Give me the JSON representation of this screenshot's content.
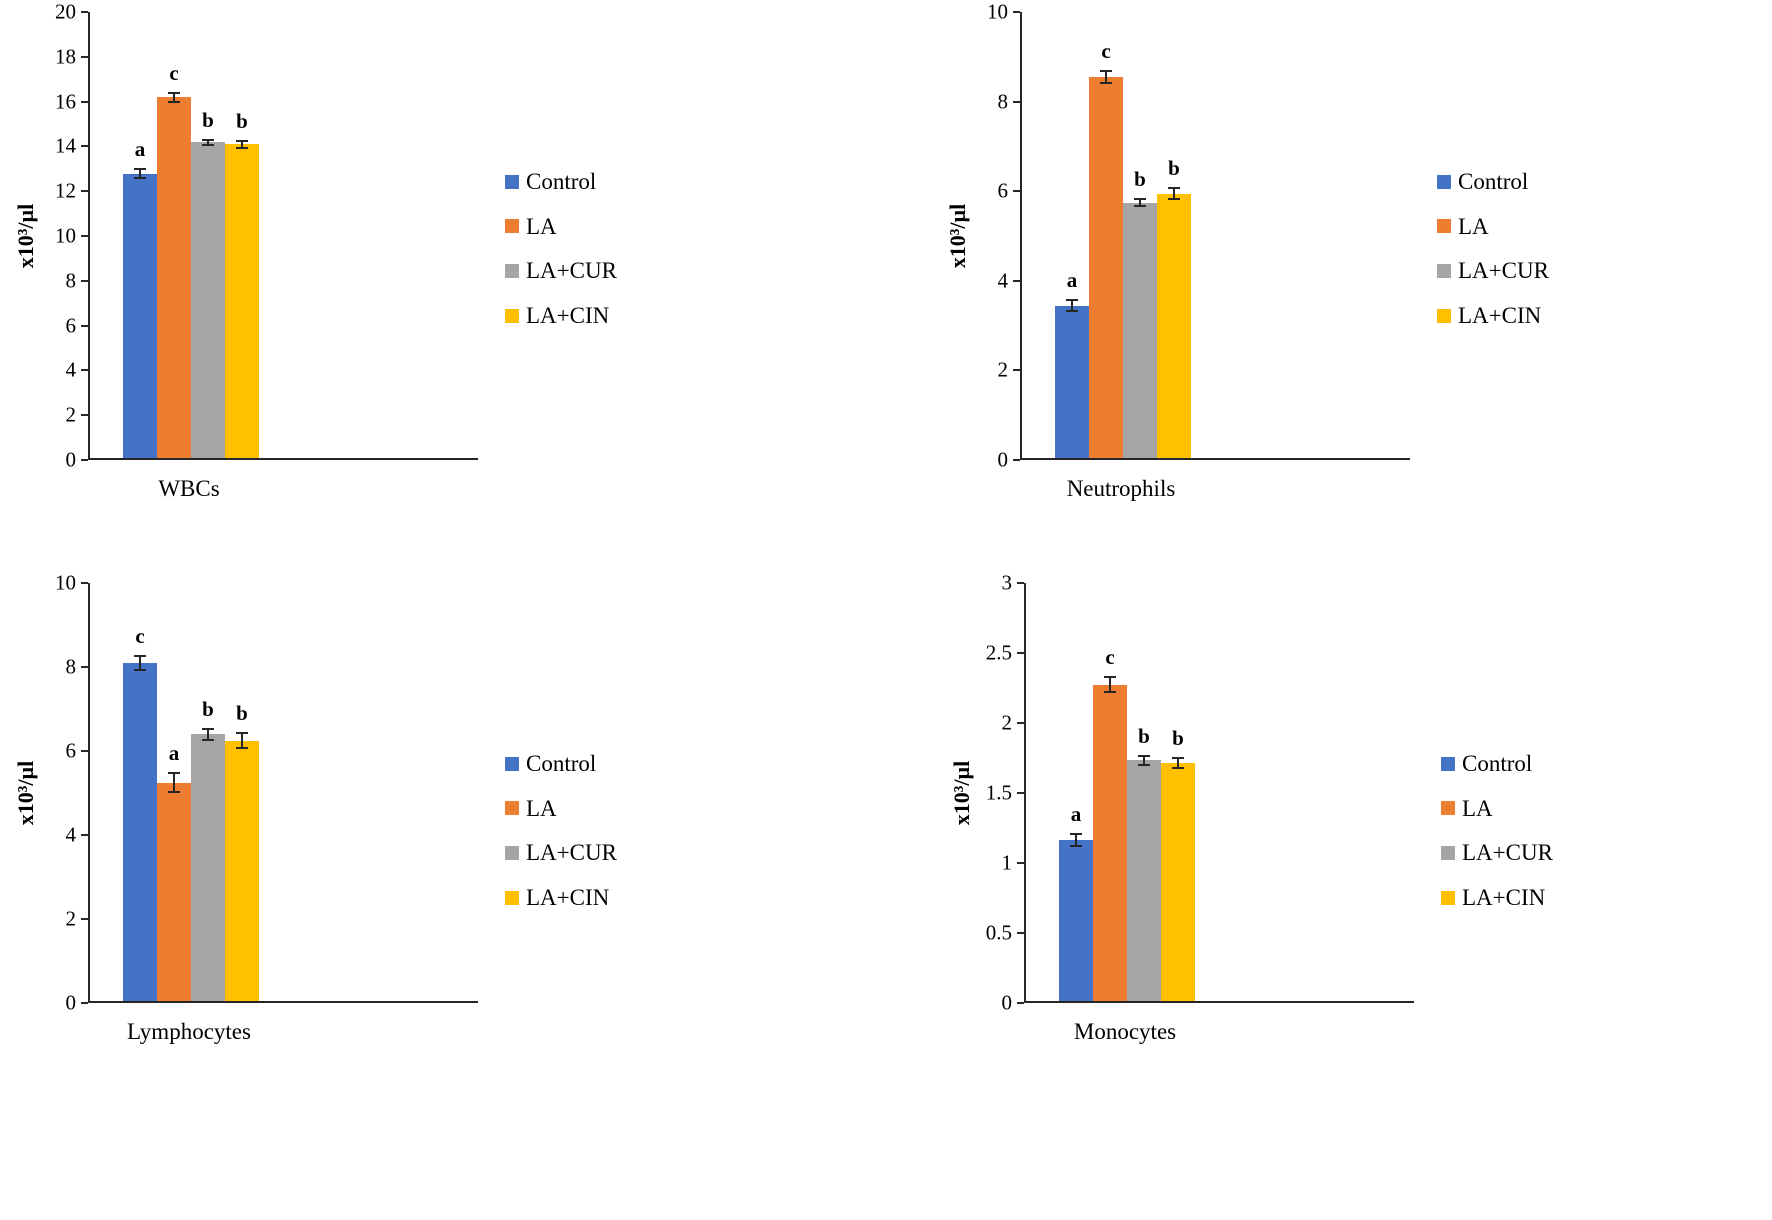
{
  "figure": {
    "description": "Four grouped bar charts of blood cell counts with error bars and significance letters",
    "colors": {
      "control": "#4472C4",
      "la": "#ED7D31",
      "la_cur": "#A5A5A5",
      "la_cin": "#FFC000"
    }
  },
  "chart_data": [
    {
      "type": "bar",
      "xlabel": "WBCs",
      "ylabel": "x10³/µl",
      "ylim": [
        0,
        20
      ],
      "yticks": [
        0,
        2,
        4,
        6,
        8,
        10,
        12,
        14,
        16,
        18,
        20
      ],
      "grid": false,
      "legend_position": "right",
      "categories": [
        "Control",
        "LA",
        "LA+CUR",
        "LA+CIN"
      ],
      "series": [
        {
          "name": "Control",
          "value": 12.7,
          "error": 0.25,
          "sig_letter": "a",
          "color": "#4472C4"
        },
        {
          "name": "LA",
          "value": 16.1,
          "error": 0.25,
          "sig_letter": "c",
          "color": "#ED7D31"
        },
        {
          "name": "LA+CUR",
          "value": 14.1,
          "error": 0.15,
          "sig_letter": "b",
          "color": "#A5A5A5"
        },
        {
          "name": "LA+CIN",
          "value": 14.0,
          "error": 0.2,
          "sig_letter": "b",
          "color": "#FFC000"
        }
      ]
    },
    {
      "type": "bar",
      "xlabel": "Neutrophils",
      "ylabel": "x10³/µl",
      "ylim": [
        0,
        10
      ],
      "yticks": [
        0,
        2,
        4,
        6,
        8,
        10
      ],
      "grid": false,
      "legend_position": "right",
      "categories": [
        "Control",
        "LA",
        "LA+CUR",
        "LA+CIN"
      ],
      "series": [
        {
          "name": "Control",
          "value": 3.4,
          "error": 0.15,
          "sig_letter": "a",
          "color": "#4472C4"
        },
        {
          "name": "LA",
          "value": 8.5,
          "error": 0.15,
          "sig_letter": "c",
          "color": "#ED7D31"
        },
        {
          "name": "LA+CUR",
          "value": 5.7,
          "error": 0.1,
          "sig_letter": "b",
          "color": "#A5A5A5"
        },
        {
          "name": "LA+CIN",
          "value": 5.9,
          "error": 0.15,
          "sig_letter": "b",
          "color": "#FFC000"
        }
      ]
    },
    {
      "type": "bar",
      "xlabel": "Lymphocytes",
      "ylabel": "x10³/µl",
      "ylim": [
        0,
        10
      ],
      "yticks": [
        0,
        2,
        4,
        6,
        8,
        10
      ],
      "grid": false,
      "legend_position": "right",
      "categories": [
        "Control",
        "LA",
        "LA+CUR",
        "LA+CIN"
      ],
      "series": [
        {
          "name": "Control",
          "value": 8.05,
          "error": 0.2,
          "sig_letter": "c",
          "color": "#4472C4"
        },
        {
          "name": "LA",
          "value": 5.2,
          "error": 0.25,
          "sig_letter": "a",
          "color": "#ED7D31"
        },
        {
          "name": "LA+CUR",
          "value": 6.35,
          "error": 0.15,
          "sig_letter": "b",
          "color": "#A5A5A5"
        },
        {
          "name": "LA+CIN",
          "value": 6.2,
          "error": 0.2,
          "sig_letter": "b",
          "color": "#FFC000"
        }
      ]
    },
    {
      "type": "bar",
      "xlabel": "Monocytes",
      "ylabel": "x10³/µl",
      "ylim": [
        0,
        3
      ],
      "yticks": [
        0,
        0.5,
        1,
        1.5,
        2,
        2.5,
        3
      ],
      "grid": false,
      "legend_position": "right",
      "categories": [
        "Control",
        "LA",
        "LA+CUR",
        "LA+CIN"
      ],
      "series": [
        {
          "name": "Control",
          "value": 1.15,
          "error": 0.05,
          "sig_letter": "a",
          "color": "#4472C4"
        },
        {
          "name": "LA",
          "value": 2.26,
          "error": 0.06,
          "sig_letter": "c",
          "color": "#ED7D31"
        },
        {
          "name": "LA+CUR",
          "value": 1.72,
          "error": 0.04,
          "sig_letter": "b",
          "color": "#A5A5A5"
        },
        {
          "name": "LA+CIN",
          "value": 1.7,
          "error": 0.04,
          "sig_letter": "b",
          "color": "#FFC000"
        }
      ]
    }
  ]
}
